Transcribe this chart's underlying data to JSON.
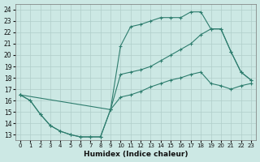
{
  "xlabel": "Humidex (Indice chaleur)",
  "background_color": "#cce8e4",
  "line_color": "#2e7d6e",
  "grid_color": "#b0ceca",
  "xlim": [
    -0.5,
    23.5
  ],
  "ylim": [
    12.5,
    24.5
  ],
  "xticks": [
    0,
    1,
    2,
    3,
    4,
    5,
    6,
    7,
    8,
    9,
    10,
    11,
    12,
    13,
    14,
    15,
    16,
    17,
    18,
    19,
    20,
    21,
    22,
    23
  ],
  "yticks": [
    13,
    14,
    15,
    16,
    17,
    18,
    19,
    20,
    21,
    22,
    23,
    24
  ],
  "line1_x": [
    0,
    1,
    2,
    3,
    4,
    5,
    6,
    7,
    8,
    9,
    10,
    11,
    12,
    13,
    14,
    15,
    16,
    17,
    18,
    19,
    20,
    21,
    22,
    23
  ],
  "line1_y": [
    16.5,
    16.0,
    14.8,
    13.8,
    13.3,
    13.0,
    12.8,
    12.8,
    12.8,
    15.2,
    20.8,
    22.5,
    22.7,
    23.0,
    23.3,
    23.3,
    23.3,
    23.8,
    23.8,
    22.3,
    22.3,
    20.3,
    18.5,
    17.8
  ],
  "line2_x": [
    0,
    9,
    10,
    11,
    12,
    13,
    14,
    15,
    16,
    17,
    18,
    19,
    20,
    21,
    22,
    23
  ],
  "line2_y": [
    16.5,
    15.2,
    18.3,
    18.5,
    18.7,
    19.0,
    19.5,
    20.0,
    20.5,
    21.0,
    21.8,
    22.3,
    22.3,
    20.3,
    18.5,
    17.8
  ],
  "line3_x": [
    0,
    1,
    2,
    3,
    4,
    5,
    6,
    7,
    8,
    9,
    10,
    11,
    12,
    13,
    14,
    15,
    16,
    17,
    18,
    19,
    20,
    21,
    22,
    23
  ],
  "line3_y": [
    16.5,
    16.0,
    14.8,
    13.8,
    13.3,
    13.0,
    12.8,
    12.8,
    12.8,
    15.2,
    16.3,
    16.5,
    16.8,
    17.2,
    17.5,
    17.8,
    18.0,
    18.3,
    18.5,
    17.5,
    17.3,
    17.0,
    17.3,
    17.5
  ]
}
